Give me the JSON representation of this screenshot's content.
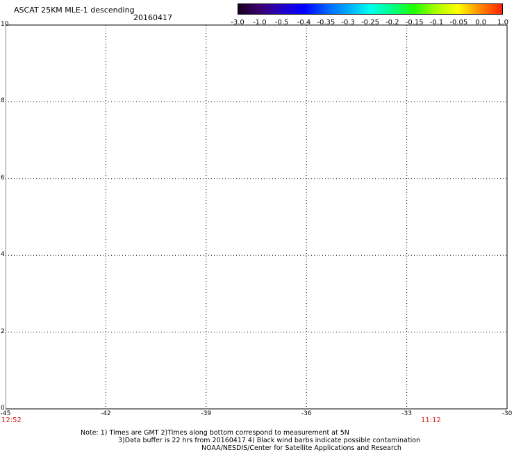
{
  "header": {
    "title": "ASCAT 25KM MLE-1 descending",
    "date": "20160417"
  },
  "colorbar": {
    "labels": [
      "-3.0",
      "-1.0",
      "-0.5",
      "-0.4",
      "-0.35",
      "-0.3",
      "-0.25",
      "-0.2",
      "-0.15",
      "-0.1",
      "-0.05",
      "0.0",
      "1.0"
    ],
    "colors": [
      "#1a0020",
      "#3a0070",
      "#2200c8",
      "#0000ff",
      "#0060ff",
      "#00aaff",
      "#00ffee",
      "#00ff88",
      "#22ff00",
      "#aaff00",
      "#ffff00",
      "#ff8800",
      "#ff2200"
    ]
  },
  "axes": {
    "x_ticks": [
      "-45",
      "-42",
      "-39",
      "-36",
      "-33",
      "-30"
    ],
    "y_ticks": [
      "0",
      "2",
      "4",
      "6",
      "8",
      "10"
    ]
  },
  "times": {
    "left": "12:52",
    "right": "11:12"
  },
  "notes": [
    "Note: 1) Times are GMT 2)Times along bottom correspond to measurement at 5N",
    "3)Data buffer is 22 hrs from 20160417 4) Black wind barbs indicate possible contamination",
    "NOAA/NESDIS/Center for Satellite Applications and Research"
  ]
}
